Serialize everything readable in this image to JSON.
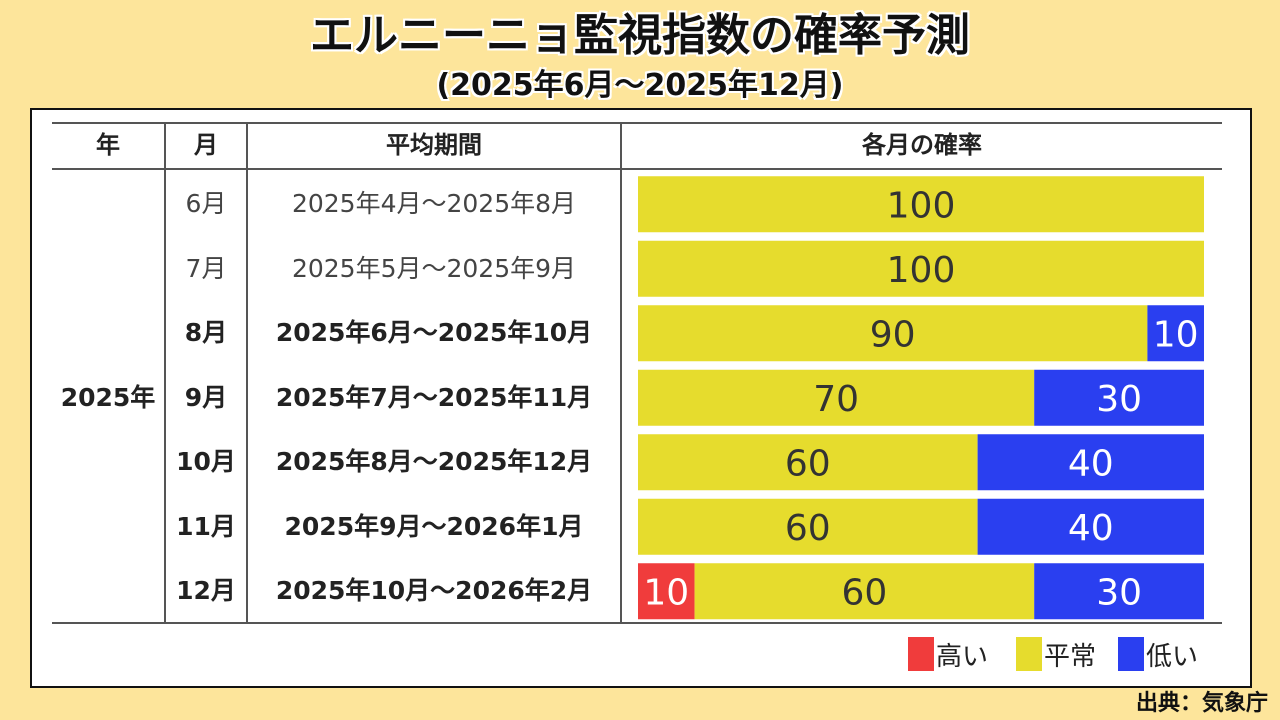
{
  "title": "エルニーニョ監視指数の確率予測",
  "subtitle": "(2025年6月～2025年12月)",
  "source": "出典：気象庁",
  "table": {
    "headers": {
      "year": "年",
      "month": "月",
      "period": "平均期間",
      "probability": "各月の確率"
    },
    "year_label": "2025年"
  },
  "colors": {
    "high": "#f03c3c",
    "normal": "#e6dc2d",
    "low": "#2a3ff0",
    "background": "#fde59b"
  },
  "chart_data": {
    "type": "bar",
    "stacked": true,
    "orientation": "horizontal",
    "categories": [
      "6月",
      "7月",
      "8月",
      "9月",
      "10月",
      "11月",
      "12月"
    ],
    "periods": [
      "2025年4月～2025年8月",
      "2025年5月～2025年9月",
      "2025年6月～2025年10月",
      "2025年7月～2025年11月",
      "2025年8月～2025年12月",
      "2025年9月～2026年1月",
      "2025年10月～2026年2月"
    ],
    "series": [
      {
        "name": "高い",
        "values": [
          0,
          0,
          0,
          0,
          0,
          0,
          10
        ]
      },
      {
        "name": "平常",
        "values": [
          100,
          100,
          90,
          70,
          60,
          60,
          60
        ]
      },
      {
        "name": "低い",
        "values": [
          0,
          0,
          10,
          30,
          40,
          40,
          30
        ]
      }
    ],
    "xlim": [
      0,
      100
    ],
    "legend_position": "bottom-right"
  }
}
